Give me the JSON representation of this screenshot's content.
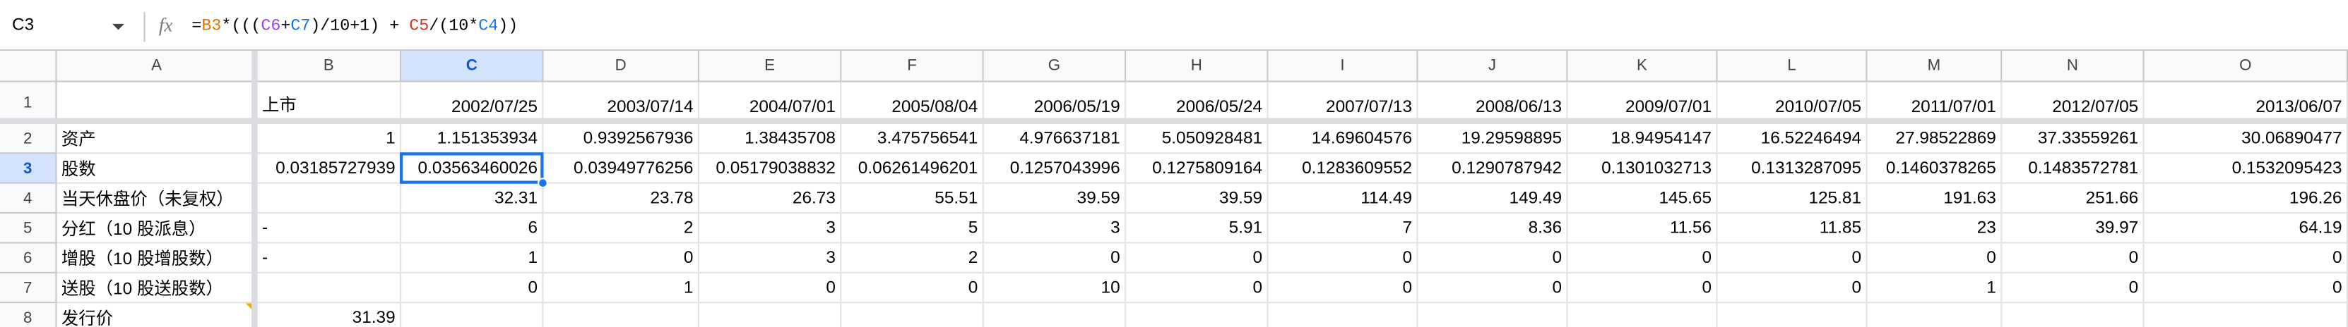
{
  "name_box": "C3",
  "formula": [
    "=",
    "B3",
    "*(((",
    "C6",
    "+",
    "C7",
    ")/10+1) + ",
    "C5",
    "/(10*",
    "C4",
    "))"
  ],
  "columns": [
    "A",
    "B",
    "C",
    "D",
    "E",
    "F",
    "G",
    "H",
    "I",
    "J",
    "K",
    "L",
    "M",
    "N",
    "O"
  ],
  "rows": [
    {
      "number": 1,
      "cells": [
        null,
        "上市",
        "2002/07/25",
        "2003/07/14",
        "2004/07/01",
        "2005/08/04",
        "2006/05/19",
        "2006/05/24",
        "2007/07/13",
        "2008/06/13",
        "2009/07/01",
        "2010/07/05",
        "2011/07/01",
        "2012/07/05",
        "2013/06/07"
      ]
    },
    {
      "number": 2,
      "cells": [
        "资产",
        1,
        1.151353934,
        0.9392567936,
        1.38435708,
        3.475756541,
        4.976637181,
        5.050928481,
        14.69604576,
        19.29598895,
        18.94954147,
        16.52246494,
        27.98522869,
        37.33559261,
        30.06890477
      ]
    },
    {
      "number": 3,
      "cells": [
        "股数",
        0.03185727939,
        0.03563460026,
        0.03949776256,
        0.05179038832,
        0.06261496201,
        0.1257043996,
        0.1275809164,
        0.1283609552,
        0.1290787942,
        0.1301032713,
        0.1313287095,
        0.1460378265,
        0.1483572781,
        0.1532095423
      ]
    },
    {
      "number": 4,
      "cells": [
        "当天休盘价（未复权）",
        null,
        32.31,
        23.78,
        26.73,
        55.51,
        39.59,
        39.59,
        114.49,
        149.49,
        145.65,
        125.81,
        191.63,
        251.66,
        196.26
      ]
    },
    {
      "number": 5,
      "cells": [
        "分红（10 股派息）",
        "-",
        6,
        2,
        3,
        5,
        3,
        5.91,
        7,
        8.36,
        11.56,
        11.85,
        23,
        39.97,
        64.19
      ]
    },
    {
      "number": 6,
      "cells": [
        "增股（10 股增股数）",
        "-",
        1,
        0,
        3,
        2,
        0,
        0,
        0,
        0,
        0,
        0,
        0,
        0,
        0
      ]
    },
    {
      "number": 7,
      "cells": [
        "送股（10 股送股数）",
        null,
        0,
        1,
        0,
        0,
        10,
        0,
        0,
        0,
        0,
        0,
        1,
        0,
        0
      ]
    },
    {
      "number": 8,
      "cells": [
        "发行价",
        31.39,
        null,
        null,
        null,
        null,
        null,
        null,
        null,
        null,
        null,
        null,
        null,
        null,
        null
      ]
    }
  ]
}
